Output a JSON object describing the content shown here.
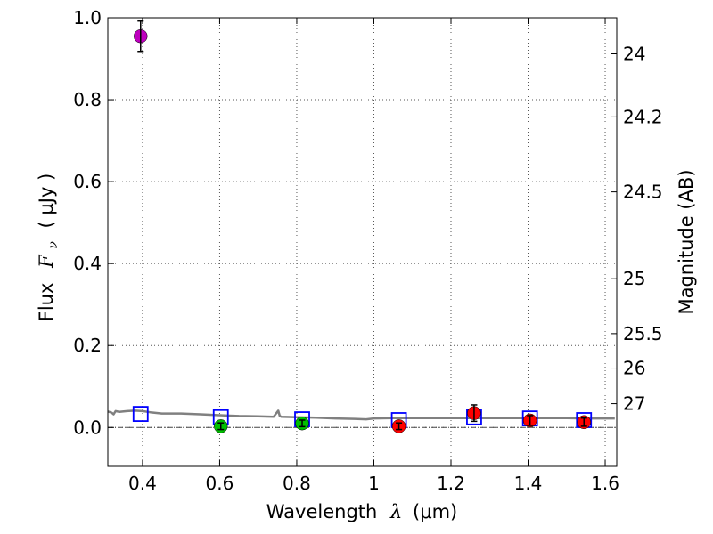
{
  "chart_data": {
    "type": "scatter",
    "xlabel": "Wavelength",
    "xlabel_symbol": "λ",
    "xlabel_unit": "(μm)",
    "ylabel": "Flux",
    "ylabel_symbol": "F",
    "ylabel_subscript": "ν",
    "ylabel_unit": "( μJy )",
    "y2label": "Magnitude (AB)",
    "xlim": [
      0.31,
      1.63
    ],
    "ylim": [
      -0.095,
      1.0
    ],
    "grid": true,
    "x_ticks": [
      0.4,
      0.6,
      0.8,
      1.0,
      1.2,
      1.4,
      1.6
    ],
    "x_tick_labels": [
      "0.4",
      "0.6",
      "0.8",
      "1",
      "1.2",
      "1.4",
      "1.6"
    ],
    "y_ticks": [
      0.0,
      0.2,
      0.4,
      0.6,
      0.8,
      1.0
    ],
    "y_tick_labels": [
      "0.0",
      "0.2",
      "0.4",
      "0.6",
      "0.8",
      "1.0"
    ],
    "y2_ticks": [
      {
        "label": "24",
        "flux": 0.912
      },
      {
        "label": "24.2",
        "flux": 0.758
      },
      {
        "label": "24.5",
        "flux": 0.575
      },
      {
        "label": "25",
        "flux": 0.363
      },
      {
        "label": "25.5",
        "flux": 0.229
      },
      {
        "label": "26",
        "flux": 0.145
      },
      {
        "label": "27",
        "flux": 0.058
      }
    ],
    "zero_line": 0.0,
    "observed": [
      {
        "x": 0.395,
        "y": 0.955,
        "err": 0.037,
        "color": "#bf00bf"
      },
      {
        "x": 0.603,
        "y": 0.003,
        "err": 0.008,
        "color": "#00bf00"
      },
      {
        "x": 0.814,
        "y": 0.01,
        "err": 0.008,
        "color": "#00bf00"
      },
      {
        "x": 1.065,
        "y": 0.003,
        "err": 0.008,
        "color": "#ff0000"
      },
      {
        "x": 1.26,
        "y": 0.035,
        "err": 0.02,
        "color": "#ff0000"
      },
      {
        "x": 1.405,
        "y": 0.017,
        "err": 0.012,
        "color": "#ff0000"
      },
      {
        "x": 1.545,
        "y": 0.013,
        "err": 0.01,
        "color": "#ff0000"
      }
    ],
    "model_points": [
      {
        "x": 0.395,
        "y": 0.033
      },
      {
        "x": 0.603,
        "y": 0.025
      },
      {
        "x": 0.814,
        "y": 0.02
      },
      {
        "x": 1.065,
        "y": 0.018
      },
      {
        "x": 1.26,
        "y": 0.025
      },
      {
        "x": 1.405,
        "y": 0.022
      },
      {
        "x": 1.545,
        "y": 0.018
      }
    ],
    "model_spectrum": {
      "color": "#808080",
      "x": [
        0.31,
        0.32,
        0.325,
        0.33,
        0.34,
        0.36,
        0.38,
        0.4,
        0.42,
        0.45,
        0.48,
        0.5,
        0.55,
        0.6,
        0.65,
        0.7,
        0.74,
        0.752,
        0.756,
        0.76,
        0.8,
        0.85,
        0.9,
        0.95,
        0.98,
        1.0,
        1.05,
        1.1,
        1.15,
        1.2,
        1.25,
        1.3,
        1.35,
        1.4,
        1.45,
        1.5,
        1.55,
        1.6,
        1.625
      ],
      "y": [
        0.039,
        0.036,
        0.032,
        0.04,
        0.038,
        0.04,
        0.041,
        0.04,
        0.037,
        0.034,
        0.034,
        0.034,
        0.032,
        0.03,
        0.028,
        0.027,
        0.026,
        0.041,
        0.028,
        0.026,
        0.025,
        0.024,
        0.022,
        0.021,
        0.02,
        0.022,
        0.023,
        0.023,
        0.023,
        0.023,
        0.023,
        0.023,
        0.023,
        0.023,
        0.023,
        0.023,
        0.022,
        0.022,
        0.022
      ]
    },
    "colors": {
      "model_box": "#0000ff",
      "errorbar": "#000000",
      "grid": "#555555",
      "marker_edge": "#000000"
    }
  }
}
